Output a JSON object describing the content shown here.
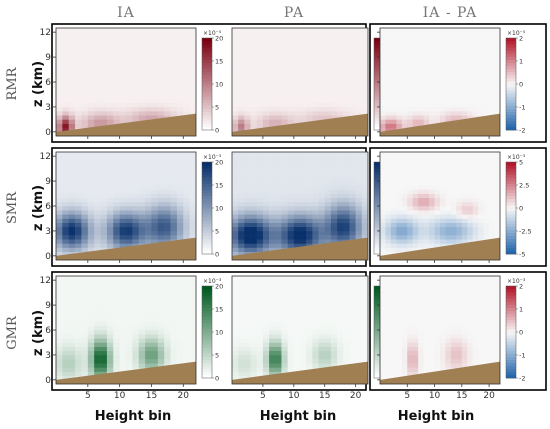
{
  "chart_data": {
    "type": "heatmap",
    "column_titles": [
      "IA",
      "PA",
      "IA - PA"
    ],
    "row_labels": [
      "RMR",
      "SMR",
      "GMR"
    ],
    "ylabel": "z (km)",
    "xlabel": "Height bin",
    "xlim": [
      0,
      22
    ],
    "ylim": [
      -0.5,
      12.5
    ],
    "x_ticks": [
      5,
      10,
      15,
      20
    ],
    "y_ticks": [
      0,
      3,
      6,
      9,
      12
    ],
    "terrain": {
      "x": [
        0,
        22
      ],
      "z": [
        0,
        2.2
      ],
      "color": "#a07f52"
    },
    "colormaps": {
      "RMR": {
        "low": "#ffffff",
        "high": "#7a0010"
      },
      "SMR": {
        "low": "#ffffff",
        "high": "#08306b"
      },
      "GMR": {
        "low": "#ffffff",
        "high": "#005a20"
      },
      "diff": {
        "negative": "#2166ac",
        "zero": "#f7f7f7",
        "positive": "#b2182b"
      }
    },
    "colorbars": [
      {
        "row": "RMR",
        "col": "IA",
        "exponent": "×10⁻⁵",
        "ticks": [
          20,
          15,
          10,
          5,
          0
        ],
        "range": [
          0,
          20
        ]
      },
      {
        "row": "RMR",
        "col": "PA",
        "exponent": "",
        "ticks": [],
        "range": [
          0,
          20
        ]
      },
      {
        "row": "RMR",
        "col": "IA - PA",
        "exponent": "×10⁻⁵",
        "ticks": [
          2,
          1,
          0,
          -1,
          -2
        ],
        "range": [
          -2,
          2
        ]
      },
      {
        "row": "SMR",
        "col": "IA",
        "exponent": "×10⁻³",
        "ticks": [
          20,
          15,
          10,
          5,
          0
        ],
        "range": [
          0,
          20
        ]
      },
      {
        "row": "SMR",
        "col": "PA",
        "exponent": "",
        "ticks": [],
        "range": [
          0,
          20
        ]
      },
      {
        "row": "SMR",
        "col": "IA - PA",
        "exponent": "×10⁻³",
        "ticks": [
          5,
          2.5,
          0,
          -2.5,
          -5
        ],
        "range": [
          -5,
          5
        ]
      },
      {
        "row": "GMR",
        "col": "IA",
        "exponent": "×10⁻³",
        "ticks": [
          20,
          15,
          10,
          5,
          0
        ],
        "range": [
          0,
          20
        ]
      },
      {
        "row": "GMR",
        "col": "PA",
        "exponent": "",
        "ticks": [],
        "range": [
          0,
          20
        ]
      },
      {
        "row": "GMR",
        "col": "IA - PA",
        "exponent": "×10⁻³",
        "ticks": [
          2,
          1,
          0,
          -1,
          -2
        ],
        "range": [
          -2,
          2
        ]
      }
    ],
    "field_shapes": {
      "RMR_IA": {
        "base": 0.06,
        "blobs": [
          {
            "x": 1.5,
            "z": 0.6,
            "a": 0.85,
            "sx": 1.2,
            "sz": 1.3
          },
          {
            "x": 7,
            "z": 1.0,
            "a": 0.35,
            "sx": 3,
            "sz": 1.3
          },
          {
            "x": 15,
            "z": 1.5,
            "a": 0.3,
            "sx": 4,
            "sz": 1.2
          }
        ]
      },
      "RMR_PA": {
        "base": 0.06,
        "blobs": [
          {
            "x": 1.5,
            "z": 0.6,
            "a": 0.45,
            "sx": 1.2,
            "sz": 1.2
          },
          {
            "x": 7,
            "z": 1.0,
            "a": 0.25,
            "sx": 3,
            "sz": 1.2
          },
          {
            "x": 15,
            "z": 1.5,
            "a": 0.18,
            "sx": 4,
            "sz": 1.1
          }
        ]
      },
      "RMR_DIFF": {
        "base": 0,
        "blobs": [
          {
            "x": 2,
            "z": 0.6,
            "a": 0.6,
            "sx": 2,
            "sz": 1.0
          },
          {
            "x": 7,
            "z": 1.0,
            "a": 0.3,
            "sx": 2,
            "sz": 1.0
          },
          {
            "x": 14,
            "z": 1.3,
            "a": 0.3,
            "sx": 3,
            "sz": 1.0
          }
        ]
      },
      "SMR_IA": {
        "base": 0.1,
        "blobs": [
          {
            "x": 2.5,
            "z": 3.0,
            "a": 0.9,
            "sx": 2.8,
            "sz": 2.2
          },
          {
            "x": 11,
            "z": 3.0,
            "a": 0.85,
            "sx": 3,
            "sz": 2.2
          },
          {
            "x": 17,
            "z": 3.5,
            "a": 0.7,
            "sx": 3,
            "sz": 2.5
          }
        ]
      },
      "SMR_PA": {
        "base": 0.12,
        "blobs": [
          {
            "x": 3,
            "z": 2.5,
            "a": 1.0,
            "sx": 3.5,
            "sz": 2.3
          },
          {
            "x": 11,
            "z": 2.5,
            "a": 0.95,
            "sx": 3.5,
            "sz": 2.3
          },
          {
            "x": 18,
            "z": 3.5,
            "a": 0.8,
            "sx": 3,
            "sz": 2.6
          }
        ]
      },
      "SMR_DIFF": {
        "base": 0,
        "blobs": [
          {
            "x": 4,
            "z": 3.0,
            "a": -0.55,
            "sx": 3,
            "sz": 1.5
          },
          {
            "x": 13,
            "z": 3.0,
            "a": -0.5,
            "sx": 4,
            "sz": 1.5
          },
          {
            "x": 8,
            "z": 6.5,
            "a": 0.35,
            "sx": 2.5,
            "sz": 1.0
          },
          {
            "x": 16,
            "z": 5.5,
            "a": 0.2,
            "sx": 2,
            "sz": 1.0
          }
        ]
      },
      "GMR_IA": {
        "base": 0.05,
        "blobs": [
          {
            "x": 7,
            "z": 2.5,
            "a": 0.95,
            "sx": 1.5,
            "sz": 2.3
          },
          {
            "x": 15,
            "z": 3.0,
            "a": 0.55,
            "sx": 2,
            "sz": 2.0
          },
          {
            "x": 2,
            "z": 2.0,
            "a": 0.25,
            "sx": 2,
            "sz": 2.0
          }
        ]
      },
      "GMR_PA": {
        "base": 0.04,
        "blobs": [
          {
            "x": 7,
            "z": 2.5,
            "a": 0.8,
            "sx": 1.3,
            "sz": 2.0
          },
          {
            "x": 15,
            "z": 3.0,
            "a": 0.25,
            "sx": 2,
            "sz": 1.8
          },
          {
            "x": 2,
            "z": 2.0,
            "a": 0.15,
            "sx": 2,
            "sz": 1.8
          }
        ]
      },
      "GMR_DIFF": {
        "base": 0,
        "blobs": [
          {
            "x": 6,
            "z": 2.5,
            "a": 0.35,
            "sx": 1,
            "sz": 2.0
          },
          {
            "x": 14,
            "z": 3.0,
            "a": 0.25,
            "sx": 2,
            "sz": 1.8
          }
        ]
      }
    }
  }
}
